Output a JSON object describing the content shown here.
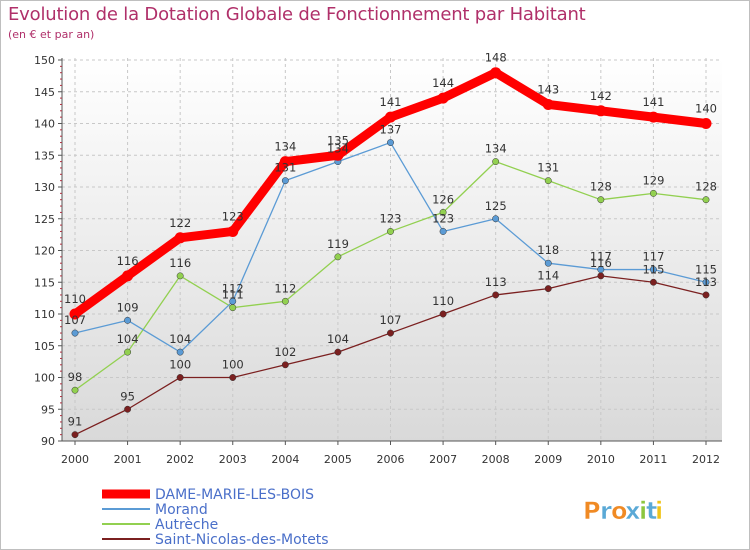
{
  "chart_data": {
    "type": "line",
    "title": "Evolution de la Dotation Globale de Fonctionnement par Habitant",
    "subtitle": "(en € et par an)",
    "x": [
      "2000",
      "2001",
      "2002",
      "2003",
      "2004",
      "2005",
      "2006",
      "2007",
      "2008",
      "2009",
      "2010",
      "2011",
      "2012"
    ],
    "ylim": [
      90,
      150
    ],
    "yticks": [
      90,
      95,
      100,
      105,
      110,
      115,
      120,
      125,
      130,
      135,
      140,
      145,
      150
    ],
    "grid": true,
    "legend_position": "bottom-left",
    "series": [
      {
        "name": "DAME-MARIE-LES-BOIS",
        "color": "#ff0000",
        "values": [
          110,
          116,
          122,
          123,
          134,
          135,
          141,
          144,
          148,
          143,
          142,
          141,
          140
        ]
      },
      {
        "name": "Morand",
        "color": "#5b9bd5",
        "values": [
          107,
          109,
          104,
          112,
          131,
          134,
          137,
          123,
          125,
          118,
          117,
          117,
          115
        ]
      },
      {
        "name": "Autrèche",
        "color": "#92d050",
        "values": [
          98,
          104,
          116,
          111,
          112,
          119,
          123,
          126,
          134,
          131,
          128,
          129,
          128
        ]
      },
      {
        "name": "Saint-Nicolas-des-Motets",
        "color": "#7b2020",
        "values": [
          91,
          95,
          100,
          100,
          102,
          104,
          107,
          110,
          113,
          114,
          116,
          115,
          113
        ]
      }
    ]
  },
  "branding": {
    "logo_text": "Proxiti"
  }
}
